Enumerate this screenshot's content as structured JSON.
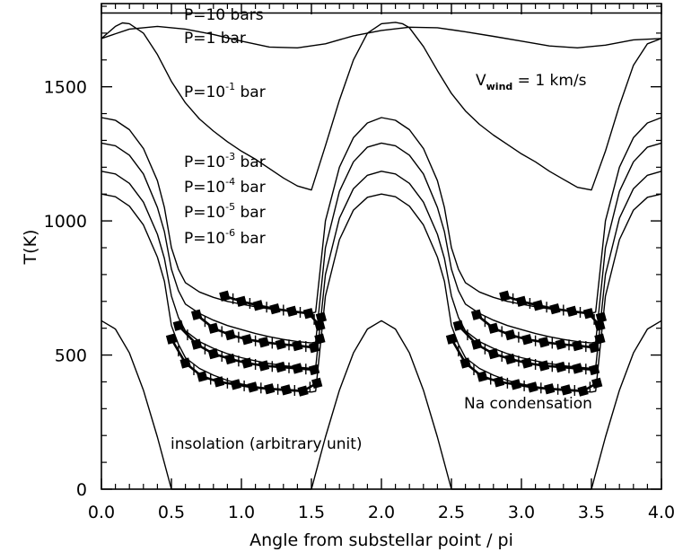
{
  "chart_data": {
    "type": "line",
    "xlabel": "Angle from substellar point / pi",
    "ylabel": "T(K)",
    "xlim": [
      0.0,
      4.0
    ],
    "ylim": [
      0,
      1800
    ],
    "xticks": [
      "0.0",
      "0.5",
      "1.0",
      "1.5",
      "2.0",
      "2.5",
      "3.0",
      "3.5",
      "4.0"
    ],
    "yticks": [
      "0",
      "500",
      "1000",
      "1500"
    ],
    "grid": false,
    "annotations": {
      "p10": "P=10 bars",
      "p1": "P=1 bar",
      "p01_base": "P=10",
      "p01_exp": "-1",
      "p01_unit": " bar",
      "p3_base": "P=10",
      "p3_exp": "-3",
      "p3_unit": " bar",
      "p4_base": "P=10",
      "p4_exp": "-4",
      "p4_unit": " bar",
      "p5_base": "P=10",
      "p5_exp": "-5",
      "p5_unit": " bar",
      "p6_base": "P=10",
      "p6_exp": "-6",
      "p6_unit": " bar",
      "vwind_main": "V",
      "vwind_sub": "wind",
      "vwind_rest": " = 1 km/s",
      "insolation": "insolation (arbitrary unit)",
      "condensation": "Na condensation"
    },
    "series": [
      {
        "x": [
          0.0,
          0.25,
          0.5,
          0.75,
          1.0,
          1.25,
          1.5,
          1.75,
          2.0,
          2.25,
          2.5,
          2.75,
          3.0,
          3.25,
          3.5,
          3.75,
          4.0
        ],
        "values": [
          1775,
          1775,
          1775,
          1775,
          1775,
          1775,
          1775,
          1775,
          1775,
          1775,
          1775,
          1775,
          1775,
          1775,
          1775,
          1775,
          1775
        ]
      },
      {
        "x": [
          0.0,
          0.2,
          0.4,
          0.6,
          0.8,
          1.0,
          1.2,
          1.4,
          1.6,
          1.8,
          2.0,
          2.2,
          2.4,
          2.6,
          2.8,
          3.0,
          3.2,
          3.4,
          3.6,
          3.8,
          4.0
        ],
        "values": [
          1680,
          1715,
          1725,
          1715,
          1695,
          1670,
          1648,
          1645,
          1660,
          1690,
          1710,
          1722,
          1720,
          1705,
          1688,
          1670,
          1652,
          1645,
          1655,
          1675,
          1680
        ]
      },
      {
        "x": [
          0.0,
          0.1,
          0.15,
          0.2,
          0.3,
          0.4,
          0.5,
          0.6,
          0.7,
          0.8,
          0.9,
          1.0,
          1.1,
          1.2,
          1.3,
          1.4,
          1.5,
          1.6,
          1.7,
          1.8,
          1.9,
          2.0,
          2.1,
          2.15,
          2.2,
          2.3,
          2.4,
          2.5,
          2.6,
          2.7,
          2.8,
          2.9,
          3.0,
          3.1,
          3.2,
          3.3,
          3.4,
          3.5,
          3.6,
          3.7,
          3.8,
          3.9,
          4.0
        ],
        "values": [
          1680,
          1725,
          1738,
          1735,
          1700,
          1620,
          1520,
          1440,
          1380,
          1335,
          1295,
          1260,
          1230,
          1195,
          1160,
          1130,
          1115,
          1280,
          1450,
          1600,
          1700,
          1735,
          1740,
          1735,
          1720,
          1650,
          1560,
          1475,
          1410,
          1360,
          1320,
          1285,
          1250,
          1220,
          1185,
          1155,
          1125,
          1115,
          1260,
          1430,
          1580,
          1660,
          1680
        ]
      },
      {
        "x": [
          0.0,
          0.1,
          0.2,
          0.3,
          0.4,
          0.45,
          0.5,
          0.55,
          0.6,
          0.7,
          0.8,
          0.9,
          1.0,
          1.1,
          1.2,
          1.3,
          1.4,
          1.5,
          1.53,
          1.6,
          1.7,
          1.8,
          1.9,
          2.0,
          2.1,
          2.2,
          2.3,
          2.4,
          2.45,
          2.5,
          2.55,
          2.6,
          2.7,
          2.8,
          2.9,
          3.0,
          3.1,
          3.2,
          3.3,
          3.4,
          3.5,
          3.53,
          3.6,
          3.7,
          3.8,
          3.9,
          4.0
        ],
        "values": [
          1385,
          1375,
          1340,
          1270,
          1150,
          1050,
          900,
          820,
          770,
          735,
          715,
          700,
          690,
          680,
          672,
          666,
          660,
          655,
          660,
          1000,
          1200,
          1310,
          1365,
          1385,
          1375,
          1340,
          1270,
          1150,
          1050,
          900,
          820,
          770,
          735,
          715,
          700,
          690,
          680,
          672,
          666,
          660,
          655,
          660,
          1000,
          1200,
          1310,
          1365,
          1385
        ]
      },
      {
        "x": [
          0.0,
          0.1,
          0.2,
          0.3,
          0.4,
          0.45,
          0.5,
          0.55,
          0.6,
          0.7,
          0.8,
          0.9,
          1.0,
          1.1,
          1.2,
          1.3,
          1.4,
          1.5,
          1.53,
          1.6,
          1.7,
          1.8,
          1.9,
          2.0,
          2.1,
          2.2,
          2.3,
          2.4,
          2.45,
          2.5,
          2.55,
          2.6,
          2.7,
          2.8,
          2.9,
          3.0,
          3.1,
          3.2,
          3.3,
          3.4,
          3.5,
          3.53,
          3.6,
          3.7,
          3.8,
          3.9,
          4.0
        ],
        "values": [
          1290,
          1280,
          1245,
          1175,
          1050,
          960,
          820,
          740,
          690,
          655,
          630,
          610,
          595,
          580,
          568,
          558,
          550,
          545,
          548,
          900,
          1110,
          1220,
          1275,
          1290,
          1280,
          1245,
          1175,
          1050,
          960,
          820,
          740,
          690,
          655,
          630,
          610,
          595,
          580,
          568,
          558,
          550,
          545,
          548,
          900,
          1110,
          1220,
          1275,
          1290
        ]
      },
      {
        "x": [
          0.0,
          0.1,
          0.2,
          0.3,
          0.4,
          0.45,
          0.5,
          0.55,
          0.6,
          0.7,
          0.8,
          0.9,
          1.0,
          1.1,
          1.2,
          1.3,
          1.4,
          1.5,
          1.53,
          1.6,
          1.7,
          1.8,
          1.9,
          2.0,
          2.1,
          2.2,
          2.3,
          2.4,
          2.45,
          2.5,
          2.55,
          2.6,
          2.7,
          2.8,
          2.9,
          3.0,
          3.1,
          3.2,
          3.3,
          3.4,
          3.5,
          3.53,
          3.6,
          3.7,
          3.8,
          3.9,
          4.0
        ],
        "values": [
          1185,
          1175,
          1140,
          1070,
          950,
          860,
          720,
          640,
          590,
          550,
          525,
          505,
          490,
          478,
          468,
          460,
          455,
          450,
          452,
          800,
          1010,
          1120,
          1170,
          1185,
          1175,
          1140,
          1070,
          950,
          860,
          720,
          640,
          590,
          550,
          525,
          505,
          490,
          478,
          468,
          460,
          455,
          450,
          452,
          800,
          1010,
          1120,
          1170,
          1185
        ]
      },
      {
        "x": [
          0.0,
          0.1,
          0.2,
          0.3,
          0.4,
          0.45,
          0.5,
          0.55,
          0.6,
          0.7,
          0.8,
          0.9,
          1.0,
          1.1,
          1.2,
          1.3,
          1.4,
          1.5,
          1.53,
          1.6,
          1.7,
          1.8,
          1.9,
          2.0,
          2.1,
          2.2,
          2.3,
          2.4,
          2.45,
          2.5,
          2.55,
          2.6,
          2.7,
          2.8,
          2.9,
          3.0,
          3.1,
          3.2,
          3.3,
          3.4,
          3.5,
          3.53,
          3.6,
          3.7,
          3.8,
          3.9,
          4.0
        ],
        "values": [
          1100,
          1090,
          1055,
          985,
          865,
          775,
          610,
          540,
          490,
          450,
          425,
          405,
          392,
          382,
          374,
          368,
          365,
          362,
          365,
          720,
          930,
          1040,
          1088,
          1100,
          1090,
          1055,
          985,
          865,
          775,
          610,
          540,
          490,
          450,
          425,
          405,
          392,
          382,
          374,
          368,
          365,
          362,
          365,
          720,
          930,
          1040,
          1088,
          1100
        ]
      },
      {
        "x": [
          0.0,
          0.1,
          0.2,
          0.3,
          0.4,
          0.5,
          1.5,
          1.6,
          1.7,
          1.8,
          1.9,
          2.0,
          2.1,
          2.2,
          2.3,
          2.4,
          2.5,
          3.5,
          3.6,
          3.7,
          3.8,
          3.9,
          4.0
        ],
        "values": [
          628,
          597,
          508,
          369,
          194,
          0,
          0,
          194,
          369,
          508,
          597,
          628,
          597,
          508,
          369,
          194,
          0,
          0,
          194,
          369,
          508,
          597,
          628
        ]
      }
    ],
    "markers": [
      {
        "x": [
          0.88,
          1.0,
          1.12,
          1.24,
          1.36,
          1.48,
          1.56,
          1.57
        ],
        "values": [
          720,
          700,
          685,
          672,
          663,
          655,
          610,
          640
        ]
      },
      {
        "x": [
          0.68,
          0.8,
          0.92,
          1.04,
          1.16,
          1.28,
          1.4,
          1.52,
          1.56
        ],
        "values": [
          650,
          600,
          575,
          558,
          548,
          540,
          535,
          528,
          560
        ]
      },
      {
        "x": [
          0.55,
          0.68,
          0.8,
          0.92,
          1.04,
          1.16,
          1.28,
          1.4,
          1.52
        ],
        "values": [
          610,
          540,
          505,
          485,
          470,
          460,
          455,
          450,
          445
        ]
      },
      {
        "x": [
          0.5,
          0.6,
          0.72,
          0.84,
          0.96,
          1.08,
          1.2,
          1.32,
          1.44,
          1.54
        ],
        "values": [
          560,
          470,
          420,
          400,
          390,
          380,
          374,
          370,
          366,
          395
        ]
      },
      {
        "x": [
          2.88,
          3.0,
          3.12,
          3.24,
          3.36,
          3.48,
          3.56,
          3.57
        ],
        "values": [
          720,
          700,
          685,
          672,
          663,
          655,
          610,
          640
        ]
      },
      {
        "x": [
          2.68,
          2.8,
          2.92,
          3.04,
          3.16,
          3.28,
          3.4,
          3.52,
          3.56
        ],
        "values": [
          650,
          600,
          575,
          558,
          548,
          540,
          535,
          528,
          560
        ]
      },
      {
        "x": [
          2.55,
          2.68,
          2.8,
          2.92,
          3.04,
          3.16,
          3.28,
          3.4,
          3.52
        ],
        "values": [
          610,
          540,
          505,
          485,
          470,
          460,
          455,
          450,
          445
        ]
      },
      {
        "x": [
          2.5,
          2.6,
          2.72,
          2.84,
          2.96,
          3.08,
          3.2,
          3.32,
          3.44,
          3.54
        ],
        "values": [
          560,
          470,
          420,
          400,
          390,
          380,
          374,
          370,
          366,
          395
        ]
      }
    ]
  }
}
